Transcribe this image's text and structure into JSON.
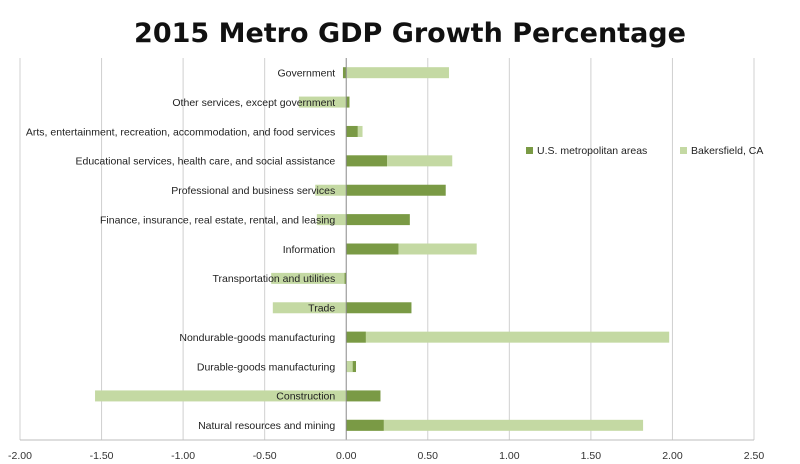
{
  "chart_data": {
    "type": "bar",
    "orientation": "horizontal",
    "title": "2015 Metro GDP Growth Percentage",
    "xlabel": "",
    "ylabel": "",
    "xlim": [
      -2.0,
      2.5
    ],
    "x_ticks": [
      "-2.00",
      "-1.50",
      "-1.00",
      "-0.50",
      "0.00",
      "0.50",
      "1.00",
      "1.50",
      "2.00",
      "2.50"
    ],
    "x_tick_values": [
      -2.0,
      -1.5,
      -1.0,
      -0.5,
      0.0,
      0.5,
      1.0,
      1.5,
      2.0,
      2.5
    ],
    "grid": "vertical",
    "legend_position": "right",
    "categories": [
      "Government",
      "Other services, except government",
      "Arts, entertainment, recreation, accommodation, and food services",
      "Educational services, health care, and social assistance",
      "Professional and business services",
      "Finance, insurance, real estate, rental, and leasing",
      "Information",
      "Transportation and utilities",
      "Trade",
      "Nondurable-goods manufacturing",
      "Durable-goods manufacturing",
      "Construction",
      "Natural resources and mining"
    ],
    "series": [
      {
        "name": "U.S. metropolitan areas",
        "color": "#7a9a45",
        "values": [
          -0.02,
          0.02,
          0.07,
          0.25,
          0.61,
          0.39,
          0.32,
          -0.01,
          0.4,
          0.12,
          0.06,
          0.21,
          0.23
        ]
      },
      {
        "name": "Bakersfield, CA",
        "color": "#c4d9a3",
        "values": [
          0.63,
          -0.29,
          0.1,
          0.65,
          -0.19,
          -0.18,
          0.8,
          -0.46,
          -0.45,
          1.98,
          0.04,
          -1.54,
          1.82
        ]
      }
    ]
  }
}
